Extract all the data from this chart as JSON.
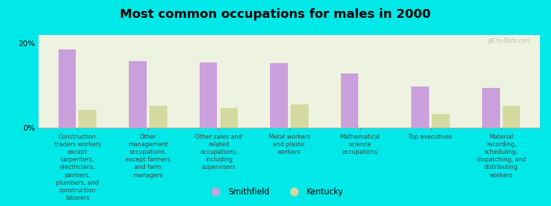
{
  "title": "Most common occupations for males in 2000",
  "categories": [
    "Construction\ntraders workers\nexcept\ncarpenters,\nelectricians,\npainters,\nplumbers, and\nconstruction\nlaborers",
    "Other\nmanagement\noccupations,\nexcept farmers\nand farm\nmanagers",
    "Other sales and\nrelated\noccupations,\nincluding\nsupervisors",
    "Metal workers\nand plastic\nworkers",
    "Mathematical\nscience\noccupations",
    "Top executives",
    "Material\nrecording,\nscheduling,\ndispatching, and\ndistributing\nworkers"
  ],
  "smithfield_values": [
    18.5,
    15.8,
    15.5,
    15.3,
    12.8,
    9.8,
    9.5
  ],
  "kentucky_values": [
    4.2,
    5.2,
    4.8,
    5.5,
    0.0,
    3.2,
    5.2
  ],
  "smithfield_color": "#c9a0dc",
  "kentucky_color": "#d4d9a0",
  "background_color": "#00e8e8",
  "plot_bg_color": "#eef2e0",
  "ylim": [
    0,
    22
  ],
  "ytick_labels": [
    "0%",
    "20%"
  ],
  "legend_smithfield": "Smithfield",
  "legend_kentucky": "Kentucky",
  "watermark": "@City-Data.com",
  "bar_width": 0.25,
  "title_fontsize": 13,
  "label_fontsize": 6.2,
  "tick_fontsize": 8
}
